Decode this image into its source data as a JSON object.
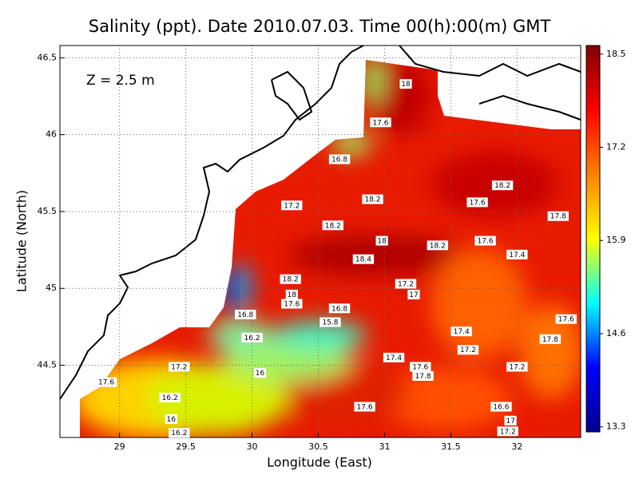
{
  "chart_data": {
    "type": "contour",
    "title": "Salinity (ppt). Date 2010.07.03. Time 00(h):00(m) GMT",
    "annotation": "Z = 2.5 m",
    "x_label": "Longitude (East)",
    "y_label": "Latitude (North)",
    "xlim": [
      28.55,
      32.48
    ],
    "ylim": [
      44.03,
      46.58
    ],
    "xticks": [
      29,
      29.5,
      30,
      30.5,
      31,
      31.5,
      32
    ],
    "yticks": [
      44.5,
      45,
      45.5,
      46,
      46.5
    ],
    "grid": true,
    "colorbar_lim": [
      13.23,
      18.62
    ],
    "colorbar_ticks": [
      13.3,
      14.6,
      15.9,
      17.2,
      18.5
    ],
    "colormap": [
      "#00008f",
      "#0000ff",
      "#00ffff",
      "#ffff00",
      "#ff8000",
      "#ff0000",
      "#800000"
    ],
    "contour_labels": {
      "x": [
        31.16,
        30.97,
        30.66,
        30.91,
        30.3,
        30.61,
        30.98,
        30.84,
        31.4,
        30.29,
        30.3,
        30.3,
        30.66,
        30.59,
        29.95,
        30.0,
        30.06,
        29.45,
        28.9,
        29.38,
        29.39,
        29.45,
        31.29,
        30.85,
        31.63,
        31.58,
        32.0,
        32.25,
        32.37,
        31.76,
        32.0,
        32.31,
        31.89,
        31.7,
        31.88,
        31.95,
        31.93,
        31.22,
        31.16,
        31.07,
        31.27
      ],
      "y": [
        46.33,
        46.08,
        45.84,
        45.58,
        45.54,
        45.41,
        45.31,
        45.19,
        45.28,
        45.06,
        44.96,
        44.9,
        44.87,
        44.78,
        44.83,
        44.68,
        44.45,
        44.49,
        44.39,
        44.29,
        44.15,
        44.06,
        44.43,
        44.23,
        44.6,
        44.72,
        44.49,
        44.67,
        44.8,
        45.31,
        45.22,
        45.47,
        45.67,
        45.56,
        44.23,
        44.14,
        44.07,
        44.96,
        45.03,
        44.55,
        44.49
      ],
      "values": [
        18,
        17.6,
        16.8,
        18.2,
        17.2,
        18.2,
        18,
        18.4,
        18.2,
        18.2,
        18,
        17.6,
        16.8,
        15.8,
        16.8,
        16.2,
        16,
        17.2,
        17.6,
        16.2,
        16,
        16.2,
        17.8,
        17.6,
        17.2,
        17.4,
        17.2,
        17.8,
        17.6,
        17.6,
        17.4,
        17.8,
        18.2,
        17.6,
        16.6,
        17,
        17.2,
        17,
        17.2,
        17.4,
        17.6
      ]
    }
  }
}
